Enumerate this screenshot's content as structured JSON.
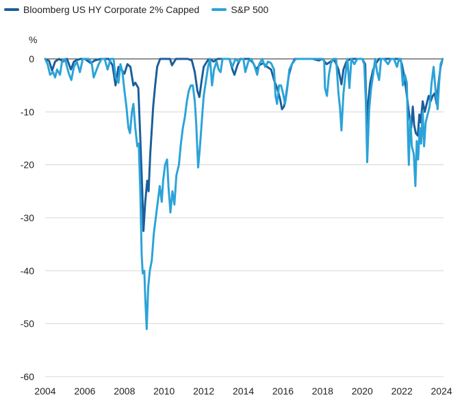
{
  "chart_data": {
    "type": "line",
    "title": "",
    "xlabel": "",
    "ylabel": "%",
    "ylim": [
      -60,
      0
    ],
    "xlim": [
      2004,
      2024.1
    ],
    "yticks": [
      "0",
      "-10",
      "-20",
      "-30",
      "-40",
      "-50",
      "-60"
    ],
    "xticks": [
      "2004",
      "2006",
      "2008",
      "2010",
      "2012",
      "2014",
      "2016",
      "2018",
      "2020",
      "2022",
      "2024"
    ],
    "grid": "horizontal",
    "legend_position": "top-left",
    "series": [
      {
        "name": "Bloomberg US HY Corporate 2% Capped",
        "color": "#1b5e9b",
        "points": [
          [
            2004.0,
            0
          ],
          [
            2004.2,
            -0.4
          ],
          [
            2004.35,
            -2.2
          ],
          [
            2004.5,
            -0.5
          ],
          [
            2004.7,
            0
          ],
          [
            2004.9,
            -0.5
          ],
          [
            2005.1,
            0
          ],
          [
            2005.3,
            -2.0
          ],
          [
            2005.45,
            -0.5
          ],
          [
            2005.6,
            -0.2
          ],
          [
            2005.8,
            0
          ],
          [
            2006.0,
            0
          ],
          [
            2006.3,
            -0.8
          ],
          [
            2006.5,
            -0.3
          ],
          [
            2006.8,
            0
          ],
          [
            2007.0,
            0
          ],
          [
            2007.2,
            0
          ],
          [
            2007.4,
            -1.2
          ],
          [
            2007.55,
            -5.0
          ],
          [
            2007.7,
            -1.5
          ],
          [
            2007.85,
            -2.0
          ],
          [
            2008.0,
            -2.8
          ],
          [
            2008.15,
            -1.0
          ],
          [
            2008.3,
            -1.5
          ],
          [
            2008.45,
            -5.0
          ],
          [
            2008.55,
            -4.5
          ],
          [
            2008.7,
            -5.5
          ],
          [
            2008.8,
            -15
          ],
          [
            2008.9,
            -25
          ],
          [
            2008.96,
            -32.5
          ],
          [
            2009.05,
            -27
          ],
          [
            2009.15,
            -23
          ],
          [
            2009.22,
            -25
          ],
          [
            2009.3,
            -18
          ],
          [
            2009.45,
            -9
          ],
          [
            2009.55,
            -5
          ],
          [
            2009.65,
            -1.5
          ],
          [
            2009.8,
            0
          ],
          [
            2010.0,
            0
          ],
          [
            2010.3,
            0
          ],
          [
            2010.4,
            -1.2
          ],
          [
            2010.6,
            0
          ],
          [
            2010.8,
            0
          ],
          [
            2011.0,
            0
          ],
          [
            2011.2,
            0
          ],
          [
            2011.4,
            -0.3
          ],
          [
            2011.55,
            -2.5
          ],
          [
            2011.68,
            -6.0
          ],
          [
            2011.78,
            -7.2
          ],
          [
            2011.9,
            -4.0
          ],
          [
            2012.0,
            -1.5
          ],
          [
            2012.2,
            -0.3
          ],
          [
            2012.3,
            0
          ],
          [
            2012.5,
            -0.5
          ],
          [
            2012.7,
            0
          ],
          [
            2013.0,
            0
          ],
          [
            2013.3,
            0
          ],
          [
            2013.45,
            -2.0
          ],
          [
            2013.55,
            -3.0
          ],
          [
            2013.7,
            -1.2
          ],
          [
            2013.85,
            0
          ],
          [
            2014.0,
            0
          ],
          [
            2014.3,
            0
          ],
          [
            2014.5,
            -0.8
          ],
          [
            2014.65,
            -2.0
          ],
          [
            2014.8,
            -1.2
          ],
          [
            2015.0,
            -0.8
          ],
          [
            2015.2,
            -1.5
          ],
          [
            2015.4,
            -2.0
          ],
          [
            2015.55,
            -4.0
          ],
          [
            2015.7,
            -5.5
          ],
          [
            2015.85,
            -7.5
          ],
          [
            2015.95,
            -9.5
          ],
          [
            2016.05,
            -9.0
          ],
          [
            2016.15,
            -7.0
          ],
          [
            2016.3,
            -3.0
          ],
          [
            2016.45,
            -1.0
          ],
          [
            2016.6,
            0
          ],
          [
            2016.9,
            0
          ],
          [
            2017.2,
            0
          ],
          [
            2017.5,
            0
          ],
          [
            2017.8,
            -0.3
          ],
          [
            2018.0,
            0
          ],
          [
            2018.2,
            -1.0
          ],
          [
            2018.4,
            -0.5
          ],
          [
            2018.6,
            -0.2
          ],
          [
            2018.8,
            -2.0
          ],
          [
            2018.95,
            -4.8
          ],
          [
            2019.05,
            -2.0
          ],
          [
            2019.2,
            -0.5
          ],
          [
            2019.4,
            0
          ],
          [
            2019.6,
            0
          ],
          [
            2019.8,
            0
          ],
          [
            2020.0,
            0
          ],
          [
            2020.15,
            -1.0
          ],
          [
            2020.22,
            -12.5
          ],
          [
            2020.3,
            -8.0
          ],
          [
            2020.4,
            -4.5
          ],
          [
            2020.55,
            -2.0
          ],
          [
            2020.7,
            -0.8
          ],
          [
            2020.85,
            0
          ],
          [
            2021.0,
            0
          ],
          [
            2021.3,
            0
          ],
          [
            2021.6,
            0
          ],
          [
            2021.9,
            0
          ],
          [
            2022.0,
            -1.0
          ],
          [
            2022.1,
            -3.0
          ],
          [
            2022.2,
            -5.5
          ],
          [
            2022.3,
            -8.5
          ],
          [
            2022.4,
            -11.5
          ],
          [
            2022.47,
            -13.0
          ],
          [
            2022.55,
            -9.0
          ],
          [
            2022.62,
            -12.5
          ],
          [
            2022.7,
            -14.0
          ],
          [
            2022.8,
            -14.5
          ],
          [
            2022.88,
            -10.5
          ],
          [
            2022.95,
            -12.0
          ],
          [
            2023.05,
            -8.0
          ],
          [
            2023.15,
            -10.0
          ],
          [
            2023.25,
            -8.5
          ],
          [
            2023.35,
            -7.0
          ],
          [
            2023.45,
            -8.0
          ],
          [
            2023.55,
            -7.0
          ],
          [
            2023.65,
            -6.5
          ],
          [
            2023.75,
            -8.5
          ],
          [
            2023.85,
            -4.5
          ],
          [
            2023.95,
            -1.5
          ],
          [
            2024.05,
            0
          ]
        ]
      },
      {
        "name": "S&P 500",
        "color": "#2ba3d8",
        "points": [
          [
            2004.0,
            0
          ],
          [
            2004.12,
            -1.0
          ],
          [
            2004.25,
            -3.0
          ],
          [
            2004.4,
            -2.5
          ],
          [
            2004.5,
            -3.5
          ],
          [
            2004.6,
            -2.0
          ],
          [
            2004.75,
            -3.0
          ],
          [
            2004.85,
            -0.5
          ],
          [
            2005.0,
            0
          ],
          [
            2005.1,
            -1.5
          ],
          [
            2005.2,
            -2.8
          ],
          [
            2005.32,
            -4.0
          ],
          [
            2005.45,
            -1.5
          ],
          [
            2005.6,
            -0.5
          ],
          [
            2005.75,
            -2.5
          ],
          [
            2005.9,
            0
          ],
          [
            2006.0,
            0
          ],
          [
            2006.2,
            0
          ],
          [
            2006.35,
            -0.8
          ],
          [
            2006.45,
            -3.5
          ],
          [
            2006.55,
            -2.5
          ],
          [
            2006.7,
            -1.0
          ],
          [
            2006.85,
            0
          ],
          [
            2007.0,
            0
          ],
          [
            2007.15,
            -2.0
          ],
          [
            2007.3,
            0
          ],
          [
            2007.45,
            0
          ],
          [
            2007.55,
            -3.5
          ],
          [
            2007.7,
            -4.5
          ],
          [
            2007.8,
            -1.0
          ],
          [
            2007.9,
            -2.5
          ],
          [
            2008.0,
            -6.0
          ],
          [
            2008.1,
            -9.0
          ],
          [
            2008.2,
            -13.0
          ],
          [
            2008.28,
            -14.0
          ],
          [
            2008.38,
            -10.0
          ],
          [
            2008.45,
            -8.5
          ],
          [
            2008.55,
            -13.0
          ],
          [
            2008.65,
            -16.5
          ],
          [
            2008.72,
            -16.0
          ],
          [
            2008.8,
            -25.0
          ],
          [
            2008.87,
            -37.0
          ],
          [
            2008.92,
            -40.5
          ],
          [
            2009.0,
            -40.0
          ],
          [
            2009.05,
            -45.0
          ],
          [
            2009.12,
            -51.0
          ],
          [
            2009.2,
            -43.0
          ],
          [
            2009.28,
            -40.0
          ],
          [
            2009.38,
            -38.0
          ],
          [
            2009.48,
            -33.0
          ],
          [
            2009.58,
            -30.0
          ],
          [
            2009.68,
            -27.0
          ],
          [
            2009.78,
            -24.0
          ],
          [
            2009.88,
            -27.0
          ],
          [
            2009.95,
            -23.0
          ],
          [
            2010.05,
            -20.0
          ],
          [
            2010.15,
            -19.0
          ],
          [
            2010.22,
            -24.0
          ],
          [
            2010.32,
            -29.0
          ],
          [
            2010.42,
            -25.0
          ],
          [
            2010.52,
            -27.5
          ],
          [
            2010.62,
            -22.0
          ],
          [
            2010.75,
            -20.0
          ],
          [
            2010.85,
            -16.0
          ],
          [
            2010.95,
            -13.0
          ],
          [
            2011.05,
            -11.0
          ],
          [
            2011.15,
            -8.0
          ],
          [
            2011.25,
            -6.0
          ],
          [
            2011.35,
            -5.0
          ],
          [
            2011.45,
            -5.0
          ],
          [
            2011.55,
            -8.0
          ],
          [
            2011.62,
            -12.0
          ],
          [
            2011.72,
            -20.5
          ],
          [
            2011.8,
            -17.0
          ],
          [
            2011.9,
            -12.0
          ],
          [
            2012.0,
            -7.0
          ],
          [
            2012.12,
            -4.0
          ],
          [
            2012.22,
            -1.5
          ],
          [
            2012.32,
            0
          ],
          [
            2012.42,
            -5.0
          ],
          [
            2012.52,
            -2.0
          ],
          [
            2012.65,
            -0.5
          ],
          [
            2012.75,
            -2.0
          ],
          [
            2012.85,
            -2.5
          ],
          [
            2012.95,
            0
          ],
          [
            2013.1,
            0
          ],
          [
            2013.3,
            0
          ],
          [
            2013.45,
            -1.5
          ],
          [
            2013.6,
            0
          ],
          [
            2013.75,
            -0.5
          ],
          [
            2013.9,
            0
          ],
          [
            2014.0,
            0
          ],
          [
            2014.1,
            -2.5
          ],
          [
            2014.25,
            -0.5
          ],
          [
            2014.4,
            0
          ],
          [
            2014.55,
            -1.2
          ],
          [
            2014.7,
            -3.0
          ],
          [
            2014.8,
            -1.0
          ],
          [
            2014.95,
            0
          ],
          [
            2015.1,
            -1.5
          ],
          [
            2015.25,
            -0.5
          ],
          [
            2015.4,
            -0.8
          ],
          [
            2015.55,
            -2.0
          ],
          [
            2015.62,
            -7.0
          ],
          [
            2015.7,
            -8.5
          ],
          [
            2015.8,
            -5.0
          ],
          [
            2015.9,
            -5.0
          ],
          [
            2016.0,
            -6.5
          ],
          [
            2016.1,
            -8.5
          ],
          [
            2016.2,
            -6.0
          ],
          [
            2016.32,
            -2.0
          ],
          [
            2016.45,
            -1.0
          ],
          [
            2016.55,
            -0.5
          ],
          [
            2016.65,
            0
          ],
          [
            2016.9,
            0
          ],
          [
            2017.2,
            0
          ],
          [
            2017.5,
            0
          ],
          [
            2017.8,
            0
          ],
          [
            2018.0,
            0
          ],
          [
            2018.08,
            -0.5
          ],
          [
            2018.12,
            -5.5
          ],
          [
            2018.22,
            -7.0
          ],
          [
            2018.32,
            -3.0
          ],
          [
            2018.42,
            -0.8
          ],
          [
            2018.55,
            0
          ],
          [
            2018.68,
            0
          ],
          [
            2018.8,
            -6.5
          ],
          [
            2018.87,
            -9.0
          ],
          [
            2018.95,
            -13.5
          ],
          [
            2019.05,
            -6.5
          ],
          [
            2019.15,
            -3.0
          ],
          [
            2019.25,
            0
          ],
          [
            2019.35,
            -5.5
          ],
          [
            2019.45,
            0
          ],
          [
            2019.6,
            -1.0
          ],
          [
            2019.75,
            0
          ],
          [
            2020.0,
            0
          ],
          [
            2020.1,
            -1.0
          ],
          [
            2020.18,
            -8.0
          ],
          [
            2020.25,
            -19.5
          ],
          [
            2020.35,
            -9.5
          ],
          [
            2020.45,
            -5.5
          ],
          [
            2020.55,
            -3.0
          ],
          [
            2020.65,
            0
          ],
          [
            2020.75,
            -2.5
          ],
          [
            2020.85,
            -4.0
          ],
          [
            2020.95,
            0
          ],
          [
            2021.1,
            0
          ],
          [
            2021.3,
            -1.0
          ],
          [
            2021.45,
            0
          ],
          [
            2021.6,
            0
          ],
          [
            2021.75,
            -1.5
          ],
          [
            2021.85,
            0
          ],
          [
            2021.95,
            0
          ],
          [
            2022.05,
            -5.0
          ],
          [
            2022.15,
            -3.0
          ],
          [
            2022.25,
            -4.5
          ],
          [
            2022.3,
            -13.5
          ],
          [
            2022.35,
            -20.0
          ],
          [
            2022.42,
            -11.0
          ],
          [
            2022.5,
            -16.5
          ],
          [
            2022.6,
            -18.0
          ],
          [
            2022.68,
            -24.0
          ],
          [
            2022.75,
            -15.5
          ],
          [
            2022.82,
            -19.0
          ],
          [
            2022.9,
            -13.0
          ],
          [
            2022.97,
            -16.0
          ],
          [
            2023.05,
            -10.0
          ],
          [
            2023.12,
            -16.5
          ],
          [
            2023.2,
            -12.0
          ],
          [
            2023.3,
            -10.5
          ],
          [
            2023.4,
            -9.0
          ],
          [
            2023.5,
            -4.5
          ],
          [
            2023.6,
            -1.5
          ],
          [
            2023.7,
            -6.0
          ],
          [
            2023.8,
            -9.5
          ],
          [
            2023.88,
            -4.5
          ],
          [
            2023.95,
            -1.0
          ],
          [
            2024.05,
            0
          ]
        ]
      }
    ]
  }
}
